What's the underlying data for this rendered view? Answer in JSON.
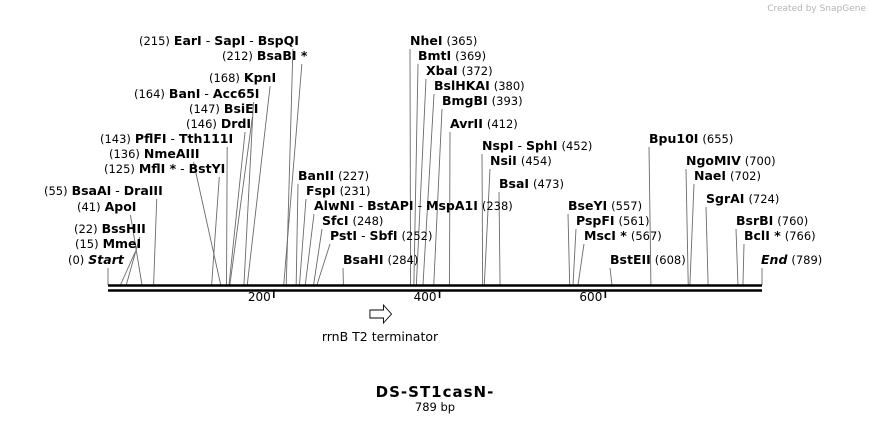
{
  "credit": "Created by SnapGene",
  "map": {
    "name": "DS-ST1casN-",
    "length_label": "789 bp",
    "length": 789,
    "ticks": [
      {
        "value": 200,
        "label": "200"
      },
      {
        "value": 400,
        "label": "400"
      },
      {
        "value": 600,
        "label": "600"
      }
    ],
    "feature": {
      "name": "rrnB T2 terminator",
      "start": 316,
      "end": 342,
      "direction": "forward"
    }
  },
  "sites": [
    {
      "id": "s0",
      "entries": [
        {
          "name": "Start",
          "italic": true
        }
      ],
      "pos_label": "(0)",
      "pos_side": "left",
      "cut": 0
    },
    {
      "id": "s15",
      "entries": [
        {
          "name": "MmeI"
        }
      ],
      "pos_label": "(15)",
      "pos_side": "left",
      "cut": 15
    },
    {
      "id": "s22",
      "entries": [
        {
          "name": "BssHII"
        }
      ],
      "pos_label": "(22)",
      "pos_side": "left",
      "cut": 22
    },
    {
      "id": "s41",
      "entries": [
        {
          "name": "ApoI"
        }
      ],
      "pos_label": "(41)",
      "pos_side": "left",
      "cut": 41
    },
    {
      "id": "s55",
      "entries": [
        {
          "name": "BsaAI"
        },
        {
          "name": "DraIII"
        }
      ],
      "pos_label": "(55)",
      "pos_side": "left",
      "cut": 55
    },
    {
      "id": "s125",
      "entries": [
        {
          "name": "MflI",
          "star": true
        },
        {
          "name": "BstYI"
        }
      ],
      "pos_label": "(125)",
      "pos_side": "left",
      "cut": 125
    },
    {
      "id": "s136",
      "entries": [
        {
          "name": "NmeAIII"
        }
      ],
      "pos_label": "(136)",
      "pos_side": "left",
      "cut": 136
    },
    {
      "id": "s143",
      "entries": [
        {
          "name": "PflFI"
        },
        {
          "name": "Tth111I"
        }
      ],
      "pos_label": "(143)",
      "pos_side": "left",
      "cut": 143
    },
    {
      "id": "s146",
      "entries": [
        {
          "name": "DrdI"
        }
      ],
      "pos_label": "(146)",
      "pos_side": "left",
      "cut": 146
    },
    {
      "id": "s147",
      "entries": [
        {
          "name": "BsiEI"
        }
      ],
      "pos_label": "(147)",
      "pos_side": "left",
      "cut": 147
    },
    {
      "id": "s164",
      "entries": [
        {
          "name": "BanI"
        },
        {
          "name": "Acc65I"
        }
      ],
      "pos_label": "(164)",
      "pos_side": "left",
      "cut": 164
    },
    {
      "id": "s168",
      "entries": [
        {
          "name": "KpnI"
        }
      ],
      "pos_label": "(168)",
      "pos_side": "left",
      "cut": 168
    },
    {
      "id": "s212",
      "entries": [
        {
          "name": "BsaBI",
          "star": true
        }
      ],
      "pos_label": "(212)",
      "pos_side": "left",
      "cut": 212
    },
    {
      "id": "s215",
      "entries": [
        {
          "name": "EarI"
        },
        {
          "name": "SapI"
        },
        {
          "name": "BspQI"
        }
      ],
      "pos_label": "(215)",
      "pos_side": "left",
      "cut": 215
    },
    {
      "id": "s227",
      "entries": [
        {
          "name": "BanII"
        }
      ],
      "pos_label": "(227)",
      "pos_side": "right",
      "cut": 227
    },
    {
      "id": "s231",
      "entries": [
        {
          "name": "FspI"
        }
      ],
      "pos_label": "(231)",
      "pos_side": "right",
      "cut": 231
    },
    {
      "id": "s238",
      "entries": [
        {
          "name": "AlwNI"
        },
        {
          "name": "BstAPI"
        },
        {
          "name": "MspA1I"
        }
      ],
      "pos_label": "(238)",
      "pos_side": "right",
      "cut": 238
    },
    {
      "id": "s248",
      "entries": [
        {
          "name": "SfcI"
        }
      ],
      "pos_label": "(248)",
      "pos_side": "right",
      "cut": 248
    },
    {
      "id": "s252",
      "entries": [
        {
          "name": "PstI"
        },
        {
          "name": "SbfI"
        }
      ],
      "pos_label": "(252)",
      "pos_side": "right",
      "cut": 252
    },
    {
      "id": "s284",
      "entries": [
        {
          "name": "BsaHI"
        }
      ],
      "pos_label": "(284)",
      "pos_side": "right",
      "cut": 284
    },
    {
      "id": "s365",
      "entries": [
        {
          "name": "NheI"
        }
      ],
      "pos_label": "(365)",
      "pos_side": "right",
      "cut": 365
    },
    {
      "id": "s369",
      "entries": [
        {
          "name": "BmtI"
        }
      ],
      "pos_label": "(369)",
      "pos_side": "right",
      "cut": 369
    },
    {
      "id": "s372",
      "entries": [
        {
          "name": "XbaI"
        }
      ],
      "pos_label": "(372)",
      "pos_side": "right",
      "cut": 372
    },
    {
      "id": "s380",
      "entries": [
        {
          "name": "BslHKAI"
        }
      ],
      "pos_label": "(380)",
      "pos_side": "right",
      "cut": 380
    },
    {
      "id": "s393",
      "entries": [
        {
          "name": "BmgBI"
        }
      ],
      "pos_label": "(393)",
      "pos_side": "right",
      "cut": 393
    },
    {
      "id": "s412",
      "entries": [
        {
          "name": "AvrII"
        }
      ],
      "pos_label": "(412)",
      "pos_side": "right",
      "cut": 412
    },
    {
      "id": "s452",
      "entries": [
        {
          "name": "NspI"
        },
        {
          "name": "SphI"
        }
      ],
      "pos_label": "(452)",
      "pos_side": "right",
      "cut": 452
    },
    {
      "id": "s454",
      "entries": [
        {
          "name": "NsiI"
        }
      ],
      "pos_label": "(454)",
      "pos_side": "right",
      "cut": 454
    },
    {
      "id": "s473",
      "entries": [
        {
          "name": "BsaI"
        }
      ],
      "pos_label": "(473)",
      "pos_side": "right",
      "cut": 473
    },
    {
      "id": "s557",
      "entries": [
        {
          "name": "BseYI"
        }
      ],
      "pos_label": "(557)",
      "pos_side": "right",
      "cut": 557
    },
    {
      "id": "s561",
      "entries": [
        {
          "name": "PspFI"
        }
      ],
      "pos_label": "(561)",
      "pos_side": "right",
      "cut": 561
    },
    {
      "id": "s567",
      "entries": [
        {
          "name": "MscI",
          "star": true
        }
      ],
      "pos_label": "(567)",
      "pos_side": "right",
      "cut": 567
    },
    {
      "id": "s608",
      "entries": [
        {
          "name": "BstEII"
        }
      ],
      "pos_label": "(608)",
      "pos_side": "right",
      "cut": 608
    },
    {
      "id": "s655",
      "entries": [
        {
          "name": "Bpu10I"
        }
      ],
      "pos_label": "(655)",
      "pos_side": "right",
      "cut": 655
    },
    {
      "id": "s700",
      "entries": [
        {
          "name": "NgoMIV"
        }
      ],
      "pos_label": "(700)",
      "pos_side": "right",
      "cut": 700
    },
    {
      "id": "s702",
      "entries": [
        {
          "name": "NaeI"
        }
      ],
      "pos_label": "(702)",
      "pos_side": "right",
      "cut": 702
    },
    {
      "id": "s724",
      "entries": [
        {
          "name": "SgrAI"
        }
      ],
      "pos_label": "(724)",
      "pos_side": "right",
      "cut": 724
    },
    {
      "id": "s760",
      "entries": [
        {
          "name": "BsrBI"
        }
      ],
      "pos_label": "(760)",
      "pos_side": "right",
      "cut": 760
    },
    {
      "id": "s766",
      "entries": [
        {
          "name": "BclI",
          "star": true
        }
      ],
      "pos_label": "(766)",
      "pos_side": "right",
      "cut": 766
    },
    {
      "id": "s789",
      "entries": [
        {
          "name": "End",
          "italic": true
        }
      ],
      "pos_label": "(789)",
      "pos_side": "right",
      "cut": 789
    }
  ]
}
